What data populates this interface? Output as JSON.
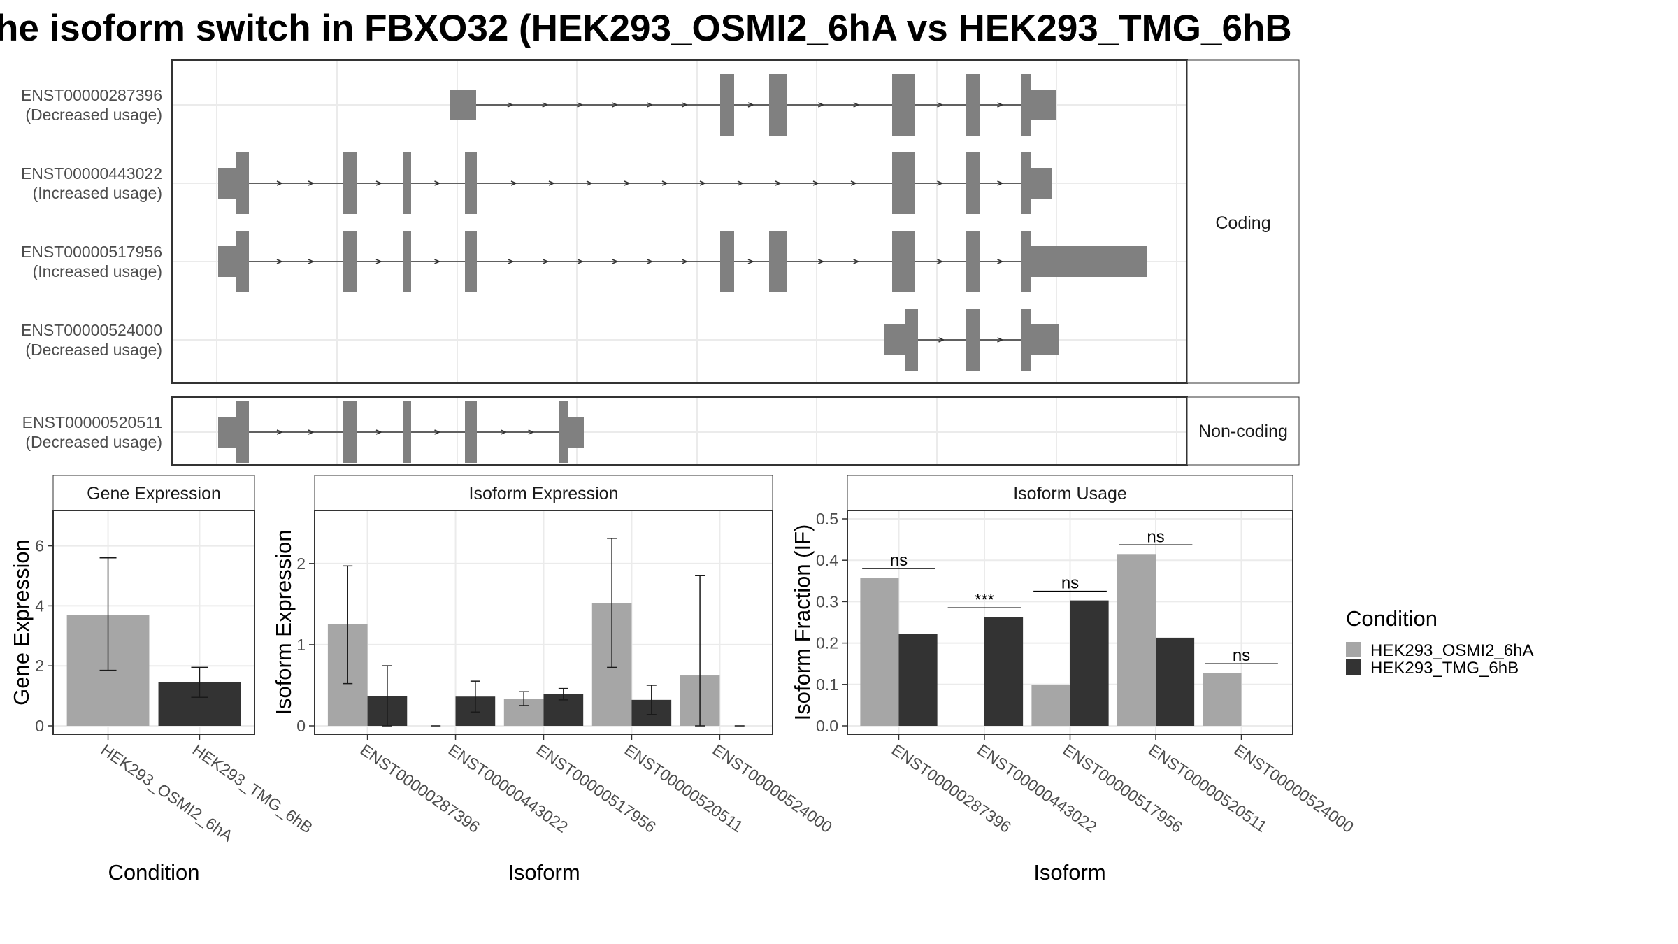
{
  "title": "he isoform switch in FBXO32 (HEK293_OSMI2_6hA vs HEK293_TMG_6hB",
  "colors": {
    "feature": "#808080",
    "cond_a": "#a6a6a6",
    "cond_b": "#333333",
    "grid": "#ebebeb",
    "strip": "#ffffff"
  },
  "structure": {
    "strips": [
      "Coding",
      "Non-coding"
    ],
    "transcripts": [
      {
        "id": "ENST00000287396",
        "usage": "(Decreased usage)"
      },
      {
        "id": "ENST00000443022",
        "usage": "(Increased usage)"
      },
      {
        "id": "ENST00000517956",
        "usage": "(Increased usage)"
      },
      {
        "id": "ENST00000524000",
        "usage": "(Decreased usage)"
      },
      {
        "id": "ENST00000520511",
        "usage": "(Decreased usage)"
      }
    ]
  },
  "legend": {
    "title": "Condition",
    "items": [
      "HEK293_OSMI2_6hA",
      "HEK293_TMG_6hB"
    ]
  },
  "chart_data": [
    {
      "type": "bar",
      "title": "Gene Expression",
      "xlabel": "Condition",
      "ylabel": "Gene Expression",
      "categories": [
        "HEK293_OSMI2_6hA",
        "HEK293_TMG_6hB"
      ],
      "values": [
        3.7,
        1.45
      ],
      "error_low": [
        1.85,
        0.95
      ],
      "error_high": [
        5.6,
        1.95
      ],
      "ylim": [
        0,
        6.9
      ],
      "yticks": [
        0,
        2,
        4,
        6
      ]
    },
    {
      "type": "bar",
      "title": "Isoform Expression",
      "xlabel": "Isoform",
      "ylabel": "Isoform Expression",
      "categories": [
        "ENST00000287396",
        "ENST00000443022",
        "ENST00000517956",
        "ENST00000520511",
        "ENST00000524000"
      ],
      "series": [
        {
          "name": "HEK293_OSMI2_6hA",
          "values": [
            1.25,
            0.0,
            0.33,
            1.51,
            0.62
          ],
          "error_low": [
            0.52,
            0.0,
            0.25,
            0.72,
            0.0
          ],
          "error_high": [
            1.97,
            0.0,
            0.42,
            2.31,
            1.85
          ]
        },
        {
          "name": "HEK293_TMG_6hB",
          "values": [
            0.37,
            0.36,
            0.39,
            0.32,
            0.0
          ],
          "error_low": [
            0.0,
            0.17,
            0.32,
            0.14,
            0.0
          ],
          "error_high": [
            0.74,
            0.55,
            0.46,
            0.5,
            0.0
          ]
        }
      ],
      "ylim": [
        0,
        2.55
      ],
      "yticks": [
        0,
        1,
        2
      ]
    },
    {
      "type": "bar",
      "title": "Isoform Usage",
      "xlabel": "Isoform",
      "ylabel": "Isoform Fraction (IF)",
      "categories": [
        "ENST00000287396",
        "ENST00000443022",
        "ENST00000517956",
        "ENST00000520511",
        "ENST00000524000"
      ],
      "series": [
        {
          "name": "HEK293_OSMI2_6hA",
          "values": [
            0.357,
            0.0,
            0.098,
            0.415,
            0.128
          ]
        },
        {
          "name": "HEK293_TMG_6hB",
          "values": [
            0.222,
            0.263,
            0.303,
            0.213,
            0.0
          ]
        }
      ],
      "significance": [
        "ns",
        "***",
        "ns",
        "ns",
        "ns"
      ],
      "sig_y": [
        0.38,
        0.285,
        0.325,
        0.437,
        0.15
      ],
      "ylim": [
        0,
        0.5
      ],
      "yticks": [
        "0.0",
        "0.1",
        "0.2",
        "0.3",
        "0.4",
        "0.5"
      ]
    }
  ]
}
